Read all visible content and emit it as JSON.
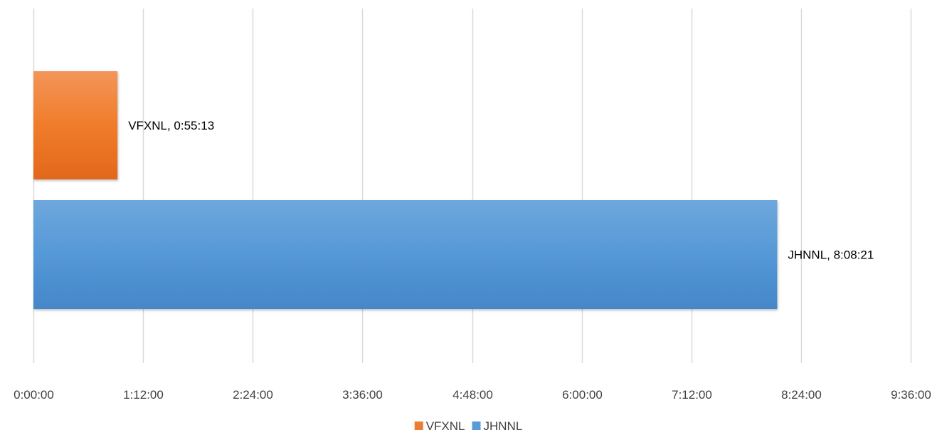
{
  "chart_data": {
    "type": "bar",
    "orientation": "horizontal",
    "title": "",
    "xlabel": "",
    "ylabel": "",
    "x_unit": "h:mm:ss",
    "xlim": [
      "0:00:00",
      "9:36:00"
    ],
    "x_ticks": [
      "0:00:00",
      "1:12:00",
      "2:24:00",
      "3:36:00",
      "4:48:00",
      "6:00:00",
      "7:12:00",
      "8:24:00",
      "9:36:00"
    ],
    "grid": true,
    "legend_position": "bottom",
    "series": [
      {
        "name": "VFXNL",
        "value": "0:55:13",
        "label": "VFXNL, 0:55:13",
        "color": "#ED7D31"
      },
      {
        "name": "JHNNL",
        "value": "8:08:21",
        "label": "JHNNL, 8:08:21",
        "color": "#5B9BD5"
      }
    ]
  }
}
